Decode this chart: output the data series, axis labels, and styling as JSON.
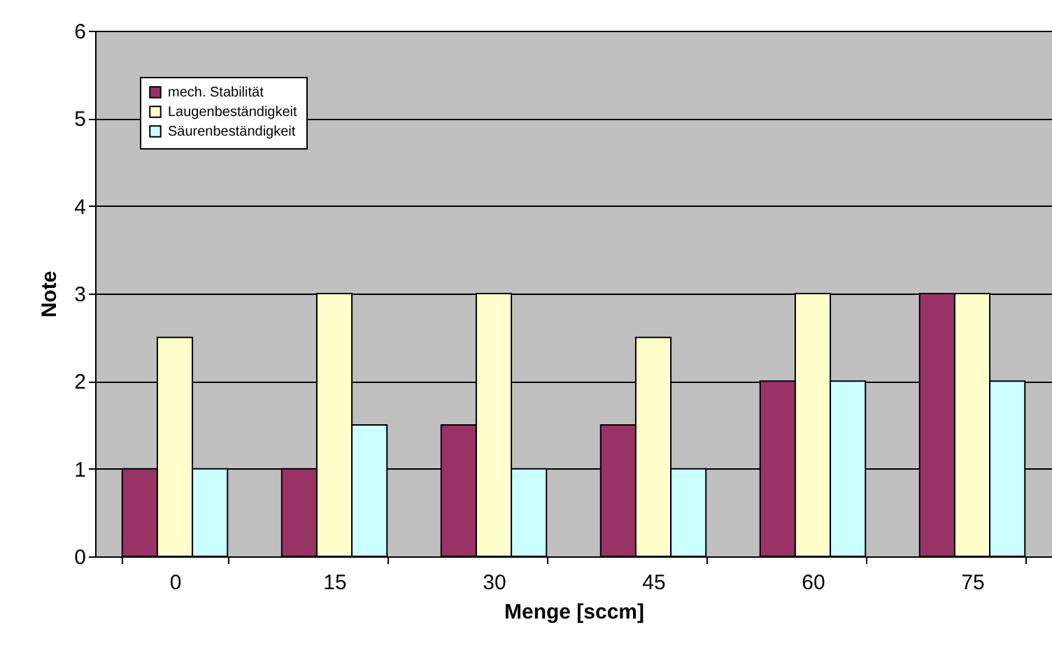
{
  "chart_data": {
    "type": "bar",
    "xlabel": "Menge [sccm]",
    "ylabel": "Note",
    "categories": [
      "0",
      "15",
      "30",
      "45",
      "60",
      "75"
    ],
    "series": [
      {
        "name": "mech. Stabilität",
        "color": "#993366",
        "values": [
          1,
          1,
          1.5,
          1.5,
          2,
          3
        ]
      },
      {
        "name": "Laugenbeständigkeit",
        "color": "#ffffcc",
        "values": [
          2.5,
          3,
          3,
          2.5,
          3,
          3
        ]
      },
      {
        "name": "Säurenbeständigkeit",
        "color": "#ccffff",
        "values": [
          1,
          1.5,
          1,
          1,
          2,
          2
        ]
      }
    ],
    "ylim": [
      0,
      6
    ],
    "yticks": [
      0,
      1,
      2,
      3,
      4,
      5,
      6
    ],
    "grid": "y",
    "legend": "top left"
  }
}
